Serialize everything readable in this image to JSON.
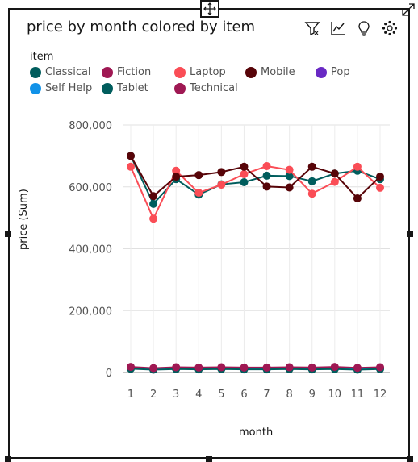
{
  "chart_title": "price by month colored by item",
  "legend_title": "item",
  "toolbar": {
    "filter_icon": "filter-icon",
    "chart_type_icon": "line-chart-icon",
    "insights_icon": "lightbulb-icon",
    "settings_icon": "settings-icon",
    "move_icon": "move-icon",
    "expand_icon": "expand-icon"
  },
  "chart_data": {
    "type": "line",
    "title": "price by month colored by item",
    "xlabel": "month",
    "ylabel": "price (Sum)",
    "x": [
      1,
      2,
      3,
      4,
      5,
      6,
      7,
      8,
      9,
      10,
      11,
      12
    ],
    "ylim": [
      0,
      800000
    ],
    "yticks": [
      0,
      200000,
      400000,
      600000,
      800000
    ],
    "ytick_labels": [
      "0",
      "200,000",
      "400,000",
      "600,000",
      "800,000"
    ],
    "grid": true,
    "legend_position": "top-left",
    "series": [
      {
        "name": "Classical",
        "color": "#005d5d",
        "values": [
          700000,
          545000,
          625000,
          575000,
          608000,
          615000,
          636000,
          635000,
          618000,
          643000,
          652000,
          625000
        ]
      },
      {
        "name": "Fiction",
        "color": "#9f1853",
        "values": [
          16000,
          12000,
          15000,
          14000,
          15000,
          14000,
          14000,
          15000,
          14000,
          16000,
          13000,
          15000
        ]
      },
      {
        "name": "Laptop",
        "color": "#fa4d56",
        "values": [
          665000,
          497000,
          652000,
          581000,
          607000,
          641000,
          667000,
          655000,
          578000,
          616000,
          665000,
          597000
        ]
      },
      {
        "name": "Mobile",
        "color": "#570408",
        "values": [
          700000,
          570000,
          633000,
          638000,
          648000,
          665000,
          601000,
          598000,
          665000,
          643000,
          563000,
          633000
        ]
      },
      {
        "name": "Pop",
        "color": "#6929c4",
        "values": [
          14000,
          10000,
          13000,
          12000,
          13000,
          12000,
          12000,
          13000,
          12000,
          13000,
          11000,
          13000
        ]
      },
      {
        "name": "Self Help",
        "color": "#1192e8",
        "values": [
          15000,
          11000,
          14000,
          13000,
          14000,
          13000,
          13000,
          14000,
          13000,
          15000,
          12000,
          14000
        ]
      },
      {
        "name": "Tablet",
        "color": "#005d5d",
        "values": [
          12000,
          9000,
          11000,
          10000,
          11000,
          10000,
          10000,
          11000,
          10000,
          11000,
          9000,
          11000
        ]
      },
      {
        "name": "Technical",
        "color": "#9f1853",
        "values": [
          18000,
          14000,
          17000,
          16000,
          17000,
          16000,
          16000,
          17000,
          16000,
          18000,
          15000,
          17000
        ]
      }
    ]
  }
}
